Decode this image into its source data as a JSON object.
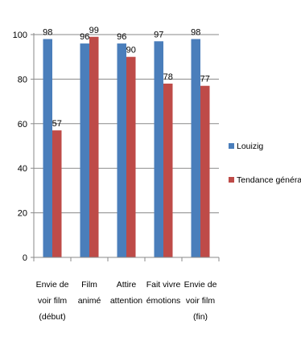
{
  "chart_data": {
    "type": "bar",
    "categories": [
      [
        "Envie de",
        "voir film",
        "(début)"
      ],
      [
        "Film",
        "animé"
      ],
      [
        "Attire",
        "attention"
      ],
      [
        "Fait vivre",
        "émotions"
      ],
      [
        "Envie de",
        "voir film",
        "(fin)"
      ]
    ],
    "series": [
      {
        "name": "Louizig",
        "values": [
          98,
          96,
          96,
          97,
          98
        ],
        "color": "#4a7ebb"
      },
      {
        "name": "Tendance générale",
        "values": [
          57,
          99,
          90,
          78,
          77
        ],
        "color": "#be4b48"
      }
    ],
    "ylim": [
      0,
      100
    ],
    "yticks": [
      0,
      20,
      40,
      60,
      80,
      100
    ],
    "grid": true,
    "legend_position": "right"
  }
}
